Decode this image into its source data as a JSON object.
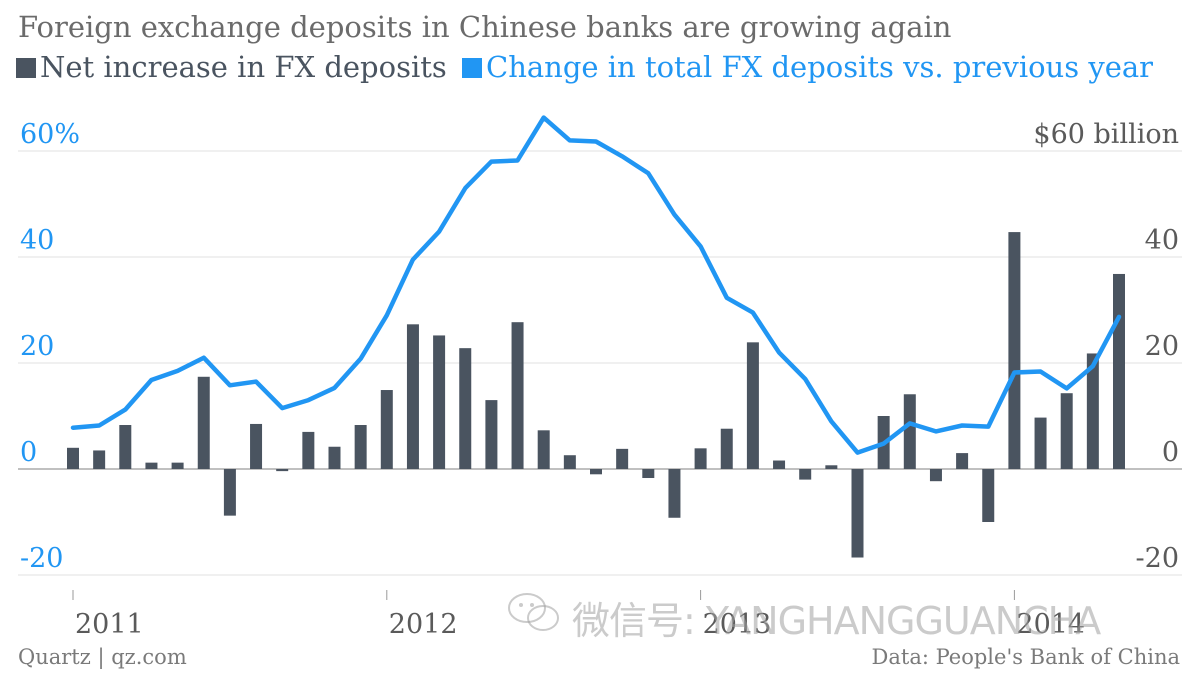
{
  "chart_data": {
    "type": "bar+line",
    "title": "Foreign exchange deposits in Chinese banks are growing again",
    "legend": {
      "placement": "top-left",
      "entries": [
        "Net increase in FX deposits",
        "Change in total FX deposits vs. previous year"
      ]
    },
    "x_ticks": [
      "2011",
      "2012",
      "2013",
      "2014"
    ],
    "x_start": "2011-01",
    "left_axis": {
      "ticks": [
        "60%",
        "40",
        "20",
        "0",
        "-20"
      ],
      "range": [
        -20,
        65
      ],
      "color": "#2196f3"
    },
    "right_axis": {
      "ticks": [
        "$60 billion",
        "40",
        "20",
        "0",
        "-20"
      ],
      "range": [
        -20,
        65
      ],
      "color": "#5a5a5a"
    },
    "grid": true,
    "series": [
      {
        "name": "Net increase in FX deposits",
        "type": "bar",
        "axis": "right",
        "color": "#4a5460",
        "values": [
          4.0,
          3.5,
          8.3,
          1.2,
          1.2,
          17.4,
          -8.8,
          8.5,
          -0.4,
          7.0,
          4.2,
          8.3,
          14.9,
          27.3,
          25.2,
          22.8,
          13.0,
          27.7,
          7.3,
          2.6,
          -1.0,
          3.8,
          -1.7,
          -9.2,
          3.9,
          7.6,
          23.9,
          1.6,
          -2.0,
          0.7,
          -16.7,
          10.0,
          14.1,
          -2.3,
          3.0,
          -10.0,
          44.7,
          9.7,
          14.3,
          21.8,
          36.8
        ]
      },
      {
        "name": "Change in total FX deposits vs. previous year",
        "type": "line",
        "axis": "left",
        "color": "#2196f3",
        "values": [
          7.8,
          8.2,
          11.2,
          16.8,
          18.5,
          21.0,
          15.8,
          16.5,
          11.5,
          13.0,
          15.3,
          20.8,
          29.0,
          39.5,
          44.8,
          53.0,
          58.0,
          58.2,
          66.3,
          62.0,
          61.8,
          59.0,
          55.8,
          48.0,
          42.0,
          32.3,
          29.5,
          22.0,
          17.0,
          9.0,
          3.1,
          4.8,
          8.6,
          7.1,
          8.2,
          8.0,
          18.2,
          18.4,
          15.2,
          19.4,
          28.7
        ]
      }
    ]
  },
  "source_left": "Quartz | qz.com",
  "source_right": "Data: People's Bank of China",
  "watermark": "微信号: YANGHANGGUANCHA"
}
